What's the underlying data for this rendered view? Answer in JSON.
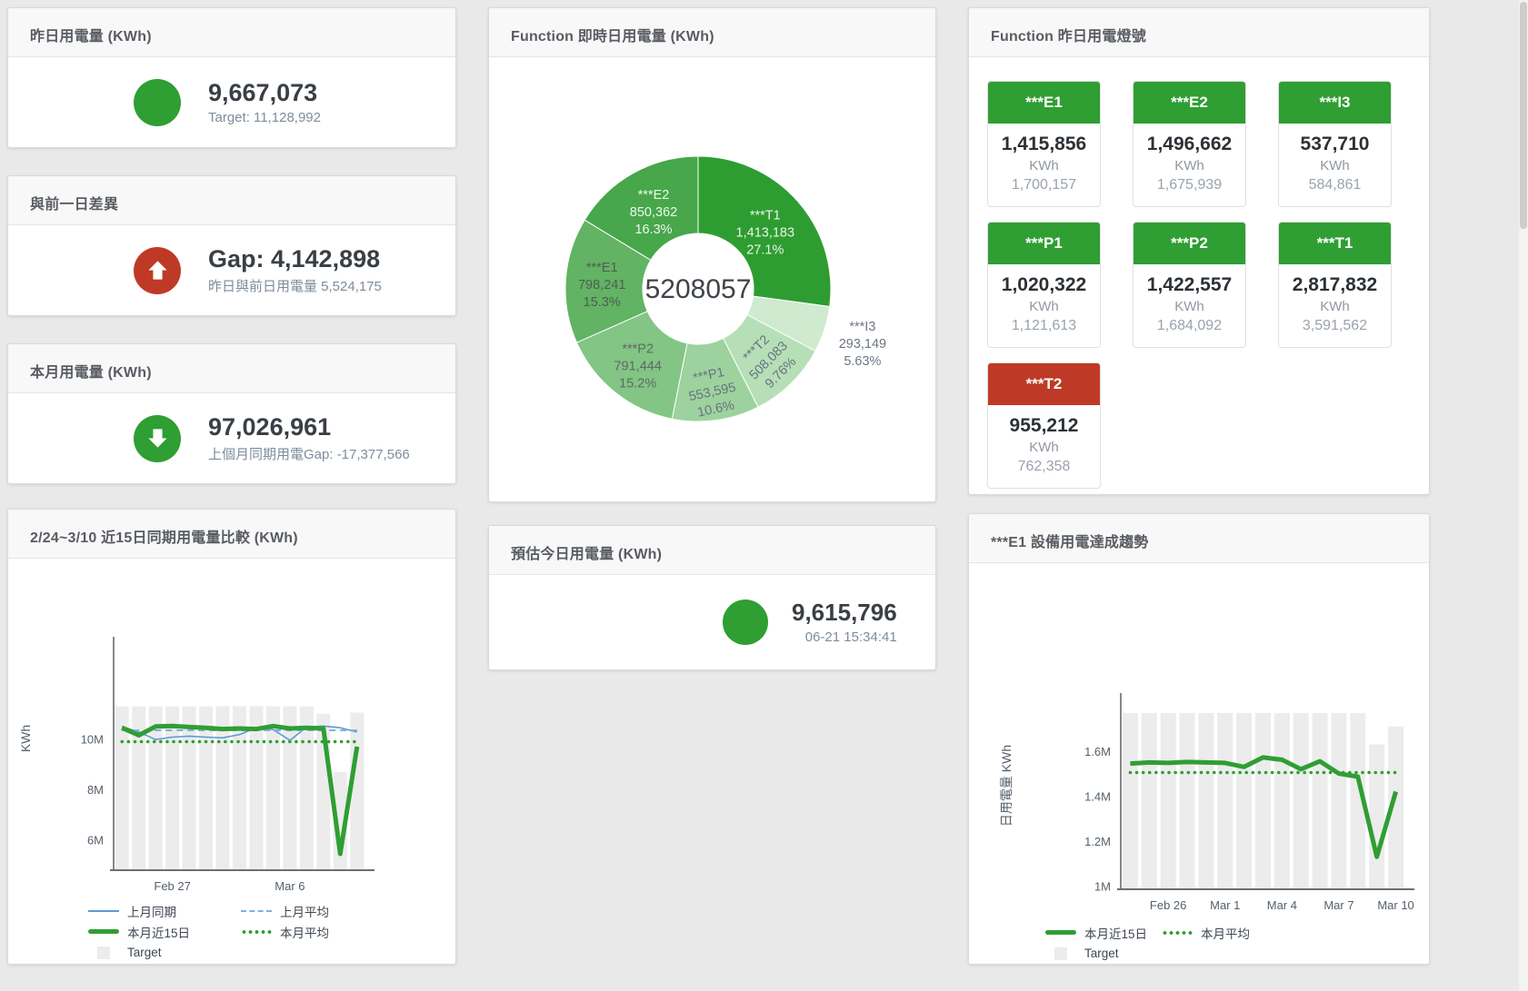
{
  "page": {
    "background": "#e9e9e9",
    "card_header_bg": "#f8f8f8"
  },
  "colors": {
    "green": "#2f9e33",
    "red": "#bf3a26",
    "target_bar_gray": "#ececec",
    "blue_line": "#5b9bd5",
    "blue_dash": "#7fb2de",
    "value_text": "#3a3f45",
    "subtitle_text": "#7e8c9c"
  },
  "cards": {
    "yesterday": {
      "title": "昨日用電量 (KWh)",
      "value": "9,667,073",
      "subtitle": "Target: 11,128,992"
    },
    "day_gap": {
      "title": "與前一日差異",
      "value": "Gap: 4,142,898",
      "subtitle": "昨日與前日用電量 5,524,175"
    },
    "month": {
      "title": "本月用電量 (KWh)",
      "value": "97,026,961",
      "subtitle": "上個月同期用電Gap: -17,377,566"
    },
    "realtime_donut": {
      "title": "Function 即時日用電量 (KWh)"
    },
    "estimate": {
      "title": "預估今日用電量 (KWh)",
      "value": "9,615,796",
      "subtitle": "06-21 15:34:41"
    },
    "lights": {
      "title": "Function 昨日用電燈號"
    },
    "compare": {
      "title": "2/24~3/10 近15日同期用電量比較 (KWh)"
    },
    "trend": {
      "title": "***E1 設備用電達成趨勢"
    }
  },
  "lights_tiles": [
    {
      "name": "***E1",
      "value": "1,415,856",
      "unit": "KWh",
      "target": "1,700,157",
      "status_color": "#2f9e33"
    },
    {
      "name": "***E2",
      "value": "1,496,662",
      "unit": "KWh",
      "target": "1,675,939",
      "status_color": "#2f9e33"
    },
    {
      "name": "***I3",
      "value": "537,710",
      "unit": "KWh",
      "target": "584,861",
      "status_color": "#2f9e33"
    },
    {
      "name": "***P1",
      "value": "1,020,322",
      "unit": "KWh",
      "target": "1,121,613",
      "status_color": "#2f9e33"
    },
    {
      "name": "***P2",
      "value": "1,422,557",
      "unit": "KWh",
      "target": "1,684,092",
      "status_color": "#2f9e33"
    },
    {
      "name": "***T1",
      "value": "2,817,832",
      "unit": "KWh",
      "target": "3,591,562",
      "status_color": "#2f9e33"
    },
    {
      "name": "***T2",
      "value": "955,212",
      "unit": "KWh",
      "target": "762,358",
      "status_color": "#bf3a26"
    }
  ],
  "chart_data": [
    {
      "id": "donut",
      "type": "pie",
      "title": "Function 即時日用電量 (KWh)",
      "center_total": "5208057",
      "legend_position": "none",
      "slices": [
        {
          "name": "***T1",
          "value": "1,413,183",
          "pct": "27.1%",
          "p": 27.1,
          "color": "#2e9d31",
          "label_color": "#e9f5e9",
          "label_r": 98
        },
        {
          "name": "***I3",
          "value": "293,149",
          "pct": "5.63%",
          "p": 5.63,
          "color": "#cfeacf",
          "label_color": "#6d7683",
          "label_r": 190,
          "outside": true
        },
        {
          "name": "***T2",
          "value": "508,083",
          "pct": "9.76%",
          "p": 9.76,
          "color": "#b6dfb7",
          "label_color": "#68727e",
          "label_r": 108,
          "rotate": -45
        },
        {
          "name": "***P1",
          "value": "553,595",
          "pct": "10.6%",
          "p": 10.6,
          "color": "#9dd29e",
          "label_color": "#68727e",
          "label_r": 112,
          "rotate": -12
        },
        {
          "name": "***P2",
          "value": "791,444",
          "pct": "15.2%",
          "p": 15.2,
          "color": "#82c584",
          "label_color": "#5f6a64",
          "label_r": 106
        },
        {
          "name": "***E1",
          "value": "798,241",
          "pct": "15.3%",
          "p": 15.3,
          "color": "#62b364",
          "label_color": "#4f5d52",
          "label_r": 106
        },
        {
          "name": "***E2",
          "value": "850,362",
          "pct": "16.3%",
          "p": 16.3,
          "color": "#47a74a",
          "label_color": "#eef7ee",
          "label_r": 100
        }
      ]
    },
    {
      "id": "compare",
      "type": "bar+line",
      "title": "2/24~3/10 近15日同期用電量比較 (KWh)",
      "ylabel": "KWh",
      "ylim": [
        4.8,
        13.7
      ],
      "n": 15,
      "grid": false,
      "unit": "M KWh",
      "y_ticks": [
        {
          "v": 6,
          "label": "6M"
        },
        {
          "v": 8,
          "label": "8M"
        },
        {
          "v": 10,
          "label": "10M"
        }
      ],
      "x_ticks": [
        {
          "i": 3,
          "label": "Feb 27"
        },
        {
          "i": 10,
          "label": "Mar 6"
        }
      ],
      "target": {
        "name": "Target",
        "color": "#ececec",
        "values": [
          11.3,
          11.3,
          11.3,
          11.3,
          11.3,
          11.3,
          11.3,
          11.3,
          11.3,
          11.3,
          11.3,
          11.3,
          11.0,
          8.7,
          11.05
        ]
      },
      "series": [
        {
          "name": "上月同期",
          "color": "#5b9bd5",
          "width": 1.6,
          "style": "solid",
          "values": [
            10.5,
            10.28,
            9.98,
            10.08,
            10.12,
            10.08,
            10.05,
            10.18,
            10.45,
            10.38,
            9.95,
            10.48,
            10.52,
            10.45,
            10.28
          ]
        },
        {
          "name": "上月平均",
          "color": "#7fb2de",
          "width": 2,
          "style": "dash",
          "values": [
            10.35,
            10.35,
            10.35,
            10.35,
            10.35,
            10.35,
            10.35,
            10.35,
            10.35,
            10.35,
            10.35,
            10.35,
            10.35,
            10.35,
            10.35
          ]
        },
        {
          "name": "本月近15日",
          "color": "#2f9e33",
          "width": 5,
          "style": "solid",
          "values": [
            10.45,
            10.15,
            10.5,
            10.52,
            10.48,
            10.45,
            10.4,
            10.42,
            10.4,
            10.52,
            10.42,
            10.45,
            10.42,
            5.45,
            9.7
          ]
        },
        {
          "name": "本月平均",
          "color": "#2f9e33",
          "width": 3.5,
          "style": "dot",
          "values": [
            9.9,
            9.9,
            9.9,
            9.9,
            9.9,
            9.9,
            9.9,
            9.9,
            9.9,
            9.9,
            9.9,
            9.9,
            9.9,
            9.9,
            9.9
          ]
        }
      ],
      "legend_rows": [
        [
          {
            "label": "上月同期",
            "sym": "blue-line"
          },
          {
            "label": "上月平均",
            "sym": "blue-dash"
          }
        ],
        [
          {
            "label": "本月近15日",
            "sym": "green-thick"
          },
          {
            "label": "本月平均",
            "sym": "green-dot"
          }
        ],
        [
          {
            "label": "Target",
            "sym": "gray-square"
          }
        ]
      ]
    },
    {
      "id": "trend",
      "type": "bar+line",
      "title": "***E1 設備用電達成趨勢",
      "ylabel": "日用電量 KWh",
      "ylim": [
        0.986,
        1.818
      ],
      "n": 15,
      "grid": false,
      "unit": "M KWh",
      "y_ticks": [
        {
          "v": 1,
          "label": "1M"
        },
        {
          "v": 1.2,
          "label": "1.2M"
        },
        {
          "v": 1.4,
          "label": "1.4M"
        },
        {
          "v": 1.6,
          "label": "1.6M"
        }
      ],
      "x_ticks": [
        {
          "i": 2,
          "label": "Feb 26"
        },
        {
          "i": 5,
          "label": "Mar 1"
        },
        {
          "i": 8,
          "label": "Mar 4"
        },
        {
          "i": 11,
          "label": "Mar 7"
        },
        {
          "i": 14,
          "label": "Mar 10"
        }
      ],
      "target": {
        "name": "Target",
        "color": "#ececec",
        "values": [
          1.77,
          1.77,
          1.77,
          1.77,
          1.77,
          1.77,
          1.77,
          1.77,
          1.77,
          1.77,
          1.77,
          1.77,
          1.77,
          1.63,
          1.71
        ]
      },
      "series": [
        {
          "name": "本月近15日",
          "color": "#2f9e33",
          "width": 5,
          "style": "solid",
          "values": [
            1.545,
            1.55,
            1.548,
            1.552,
            1.55,
            1.548,
            1.53,
            1.572,
            1.562,
            1.52,
            1.555,
            1.5,
            1.487,
            1.13,
            1.42
          ]
        },
        {
          "name": "本月平均",
          "color": "#2f9e33",
          "width": 3.5,
          "style": "dot",
          "values": [
            1.505,
            1.505,
            1.505,
            1.505,
            1.505,
            1.505,
            1.505,
            1.505,
            1.505,
            1.505,
            1.505,
            1.505,
            1.505,
            1.505,
            1.505
          ]
        }
      ],
      "legend_rows": [
        [
          {
            "label": "本月近15日",
            "sym": "green-thick"
          },
          {
            "label": "本月平均",
            "sym": "green-dot"
          }
        ],
        [
          {
            "label": "Target",
            "sym": "gray-square"
          }
        ]
      ]
    }
  ]
}
